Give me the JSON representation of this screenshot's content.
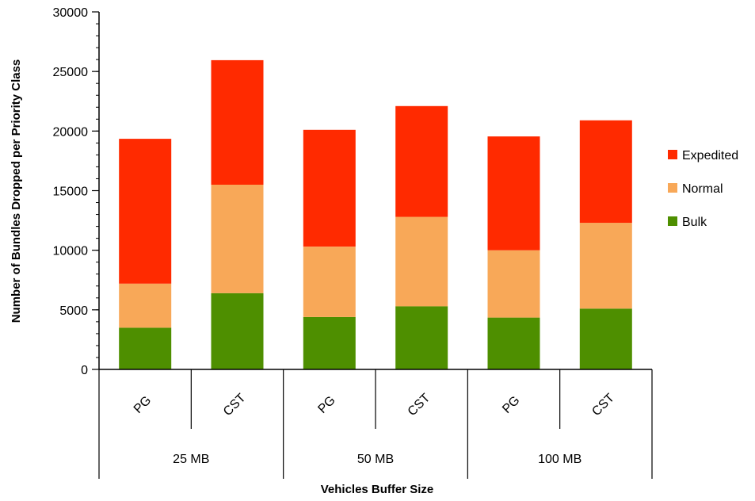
{
  "chart_data": {
    "type": "bar",
    "stacked": true,
    "ylabel": "Number of Bundles Dropped per Priority Class",
    "xlabel": "Vehicles Buffer Size",
    "ylim": [
      0,
      30000
    ],
    "yticks": [
      0,
      5000,
      10000,
      15000,
      20000,
      25000,
      30000
    ],
    "yticks_minor_step": 1000,
    "categories": [
      "PG",
      "CST",
      "PG",
      "CST",
      "PG",
      "CST"
    ],
    "groups": [
      {
        "label": "25 MB",
        "categories": [
          0,
          1
        ]
      },
      {
        "label": "50 MB",
        "categories": [
          2,
          3
        ]
      },
      {
        "label": "100 MB",
        "categories": [
          4,
          5
        ]
      }
    ],
    "series": [
      {
        "name": "Bulk",
        "color": "#4e8f00",
        "values": [
          3500,
          6400,
          4400,
          5300,
          4350,
          5100
        ]
      },
      {
        "name": "Normal",
        "color": "#f8a858",
        "values": [
          3700,
          9100,
          5900,
          7500,
          5650,
          7200
        ]
      },
      {
        "name": "Expedited",
        "color": "#ff2a00",
        "values": [
          12150,
          10450,
          9800,
          9300,
          9550,
          8600
        ]
      }
    ],
    "legend": {
      "position": "right",
      "order": [
        "Expedited",
        "Normal",
        "Bulk"
      ]
    },
    "grid": false
  }
}
